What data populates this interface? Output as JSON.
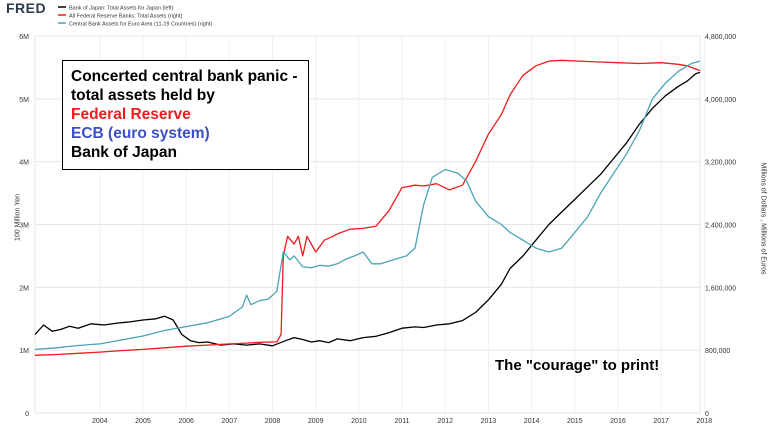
{
  "brand": "FRED",
  "chart_data": {
    "type": "line",
    "title": "",
    "left_axis": {
      "label": "100 Million Yen",
      "ticks": [
        "0",
        "1M",
        "2M",
        "3M",
        "4M",
        "5M",
        "6M"
      ],
      "ylim": [
        0,
        6000000
      ]
    },
    "right_axis": {
      "label": "Millions of Dollars , Millions of Euros",
      "ticks": [
        "0",
        "800,000",
        "1,600,000",
        "2,400,000",
        "3,200,000",
        "4,000,000",
        "4,800,000"
      ],
      "ylim": [
        0,
        4800000
      ]
    },
    "x_ticks": [
      "2004",
      "2005",
      "2006",
      "2007",
      "2008",
      "2009",
      "2010",
      "2011",
      "2012",
      "2013",
      "2014",
      "2015",
      "2016",
      "2017",
      "2018"
    ],
    "xlim": [
      2003.0,
      2018.4
    ],
    "grid": true,
    "legend_position": "top-left",
    "series": [
      {
        "name": "Bank of Japan: Total Assets for Japan (left)",
        "axis": "left",
        "color": "#000000",
        "points": [
          [
            2003.0,
            1250000
          ],
          [
            2003.2,
            1400000
          ],
          [
            2003.4,
            1300000
          ],
          [
            2003.6,
            1330000
          ],
          [
            2003.8,
            1380000
          ],
          [
            2004.0,
            1350000
          ],
          [
            2004.3,
            1420000
          ],
          [
            2004.6,
            1400000
          ],
          [
            2004.9,
            1430000
          ],
          [
            2005.2,
            1450000
          ],
          [
            2005.5,
            1480000
          ],
          [
            2005.8,
            1500000
          ],
          [
            2006.0,
            1540000
          ],
          [
            2006.2,
            1480000
          ],
          [
            2006.4,
            1250000
          ],
          [
            2006.6,
            1150000
          ],
          [
            2006.8,
            1120000
          ],
          [
            2007.0,
            1130000
          ],
          [
            2007.3,
            1080000
          ],
          [
            2007.6,
            1100000
          ],
          [
            2007.9,
            1080000
          ],
          [
            2008.2,
            1100000
          ],
          [
            2008.5,
            1070000
          ],
          [
            2008.8,
            1150000
          ],
          [
            2009.0,
            1200000
          ],
          [
            2009.2,
            1170000
          ],
          [
            2009.4,
            1130000
          ],
          [
            2009.6,
            1150000
          ],
          [
            2009.8,
            1120000
          ],
          [
            2010.0,
            1180000
          ],
          [
            2010.3,
            1150000
          ],
          [
            2010.6,
            1200000
          ],
          [
            2010.9,
            1220000
          ],
          [
            2011.2,
            1280000
          ],
          [
            2011.5,
            1350000
          ],
          [
            2011.8,
            1370000
          ],
          [
            2012.0,
            1360000
          ],
          [
            2012.3,
            1400000
          ],
          [
            2012.6,
            1420000
          ],
          [
            2012.9,
            1470000
          ],
          [
            2013.2,
            1600000
          ],
          [
            2013.5,
            1800000
          ],
          [
            2013.8,
            2050000
          ],
          [
            2014.0,
            2300000
          ],
          [
            2014.3,
            2500000
          ],
          [
            2014.6,
            2750000
          ],
          [
            2014.9,
            3000000
          ],
          [
            2015.2,
            3200000
          ],
          [
            2015.5,
            3400000
          ],
          [
            2015.8,
            3600000
          ],
          [
            2016.1,
            3800000
          ],
          [
            2016.4,
            4050000
          ],
          [
            2016.7,
            4300000
          ],
          [
            2017.0,
            4600000
          ],
          [
            2017.3,
            4850000
          ],
          [
            2017.6,
            5050000
          ],
          [
            2017.9,
            5200000
          ],
          [
            2018.1,
            5280000
          ],
          [
            2018.3,
            5400000
          ],
          [
            2018.4,
            5420000
          ]
        ]
      },
      {
        "name": "All Federal Reserve Banks: Total Assets (right)",
        "axis": "right",
        "color": "#ee1c1c",
        "points": [
          [
            2003.0,
            735000
          ],
          [
            2003.5,
            745000
          ],
          [
            2004.0,
            760000
          ],
          [
            2004.5,
            775000
          ],
          [
            2005.0,
            795000
          ],
          [
            2005.5,
            810000
          ],
          [
            2006.0,
            830000
          ],
          [
            2006.5,
            850000
          ],
          [
            2007.0,
            865000
          ],
          [
            2007.5,
            880000
          ],
          [
            2007.9,
            890000
          ],
          [
            2008.2,
            900000
          ],
          [
            2008.6,
            905000
          ],
          [
            2008.7,
            1000000
          ],
          [
            2008.75,
            2000000
          ],
          [
            2008.85,
            2250000
          ],
          [
            2009.0,
            2150000
          ],
          [
            2009.1,
            2250000
          ],
          [
            2009.2,
            2000000
          ],
          [
            2009.3,
            2250000
          ],
          [
            2009.5,
            2050000
          ],
          [
            2009.7,
            2200000
          ],
          [
            2009.9,
            2250000
          ],
          [
            2010.0,
            2280000
          ],
          [
            2010.3,
            2340000
          ],
          [
            2010.6,
            2350000
          ],
          [
            2010.9,
            2380000
          ],
          [
            2011.2,
            2580000
          ],
          [
            2011.5,
            2870000
          ],
          [
            2011.8,
            2900000
          ],
          [
            2012.0,
            2890000
          ],
          [
            2012.3,
            2920000
          ],
          [
            2012.6,
            2840000
          ],
          [
            2012.9,
            2900000
          ],
          [
            2013.2,
            3200000
          ],
          [
            2013.5,
            3550000
          ],
          [
            2013.8,
            3800000
          ],
          [
            2014.0,
            4050000
          ],
          [
            2014.3,
            4300000
          ],
          [
            2014.6,
            4420000
          ],
          [
            2014.9,
            4480000
          ],
          [
            2015.2,
            4490000
          ],
          [
            2015.6,
            4480000
          ],
          [
            2016.0,
            4470000
          ],
          [
            2016.5,
            4460000
          ],
          [
            2017.0,
            4450000
          ],
          [
            2017.5,
            4460000
          ],
          [
            2017.9,
            4440000
          ],
          [
            2018.1,
            4420000
          ],
          [
            2018.3,
            4380000
          ],
          [
            2018.4,
            4360000
          ]
        ]
      },
      {
        "name": "Central Bank Assets for Euro Area (11-19 Countries) (right)",
        "axis": "right",
        "color": "#4aa3b5",
        "points": [
          [
            2003.0,
            810000
          ],
          [
            2003.5,
            830000
          ],
          [
            2004.0,
            860000
          ],
          [
            2004.5,
            880000
          ],
          [
            2005.0,
            930000
          ],
          [
            2005.5,
            980000
          ],
          [
            2006.0,
            1050000
          ],
          [
            2006.5,
            1100000
          ],
          [
            2007.0,
            1150000
          ],
          [
            2007.5,
            1230000
          ],
          [
            2007.8,
            1350000
          ],
          [
            2007.9,
            1500000
          ],
          [
            2008.0,
            1380000
          ],
          [
            2008.2,
            1430000
          ],
          [
            2008.4,
            1450000
          ],
          [
            2008.6,
            1550000
          ],
          [
            2008.75,
            2050000
          ],
          [
            2008.9,
            1950000
          ],
          [
            2009.0,
            2000000
          ],
          [
            2009.2,
            1860000
          ],
          [
            2009.4,
            1850000
          ],
          [
            2009.6,
            1880000
          ],
          [
            2009.8,
            1870000
          ],
          [
            2010.0,
            1900000
          ],
          [
            2010.2,
            1960000
          ],
          [
            2010.4,
            2000000
          ],
          [
            2010.6,
            2050000
          ],
          [
            2010.8,
            1900000
          ],
          [
            2011.0,
            1900000
          ],
          [
            2011.3,
            1950000
          ],
          [
            2011.6,
            2000000
          ],
          [
            2011.8,
            2100000
          ],
          [
            2012.0,
            2650000
          ],
          [
            2012.2,
            3000000
          ],
          [
            2012.5,
            3100000
          ],
          [
            2012.8,
            3050000
          ],
          [
            2013.0,
            2950000
          ],
          [
            2013.2,
            2700000
          ],
          [
            2013.5,
            2500000
          ],
          [
            2013.8,
            2400000
          ],
          [
            2014.0,
            2300000
          ],
          [
            2014.3,
            2200000
          ],
          [
            2014.6,
            2100000
          ],
          [
            2014.9,
            2050000
          ],
          [
            2015.2,
            2100000
          ],
          [
            2015.5,
            2300000
          ],
          [
            2015.8,
            2500000
          ],
          [
            2016.1,
            2800000
          ],
          [
            2016.4,
            3050000
          ],
          [
            2016.7,
            3300000
          ],
          [
            2017.0,
            3600000
          ],
          [
            2017.3,
            4000000
          ],
          [
            2017.6,
            4200000
          ],
          [
            2017.9,
            4350000
          ],
          [
            2018.2,
            4450000
          ],
          [
            2018.4,
            4480000
          ]
        ]
      }
    ],
    "annotations": {
      "box_lines": [
        {
          "text": "Concerted central bank panic -",
          "color": "#000000"
        },
        {
          "text": "total assets held by",
          "color": "#000000"
        },
        {
          "text": "Federal Reserve",
          "color": "#ee1c1c"
        },
        {
          "text": "ECB (euro system)",
          "color": "#3b4fc4"
        },
        {
          "text": "Bank of Japan",
          "color": "#000000"
        }
      ],
      "note": "The \"courage\" to print!"
    }
  }
}
